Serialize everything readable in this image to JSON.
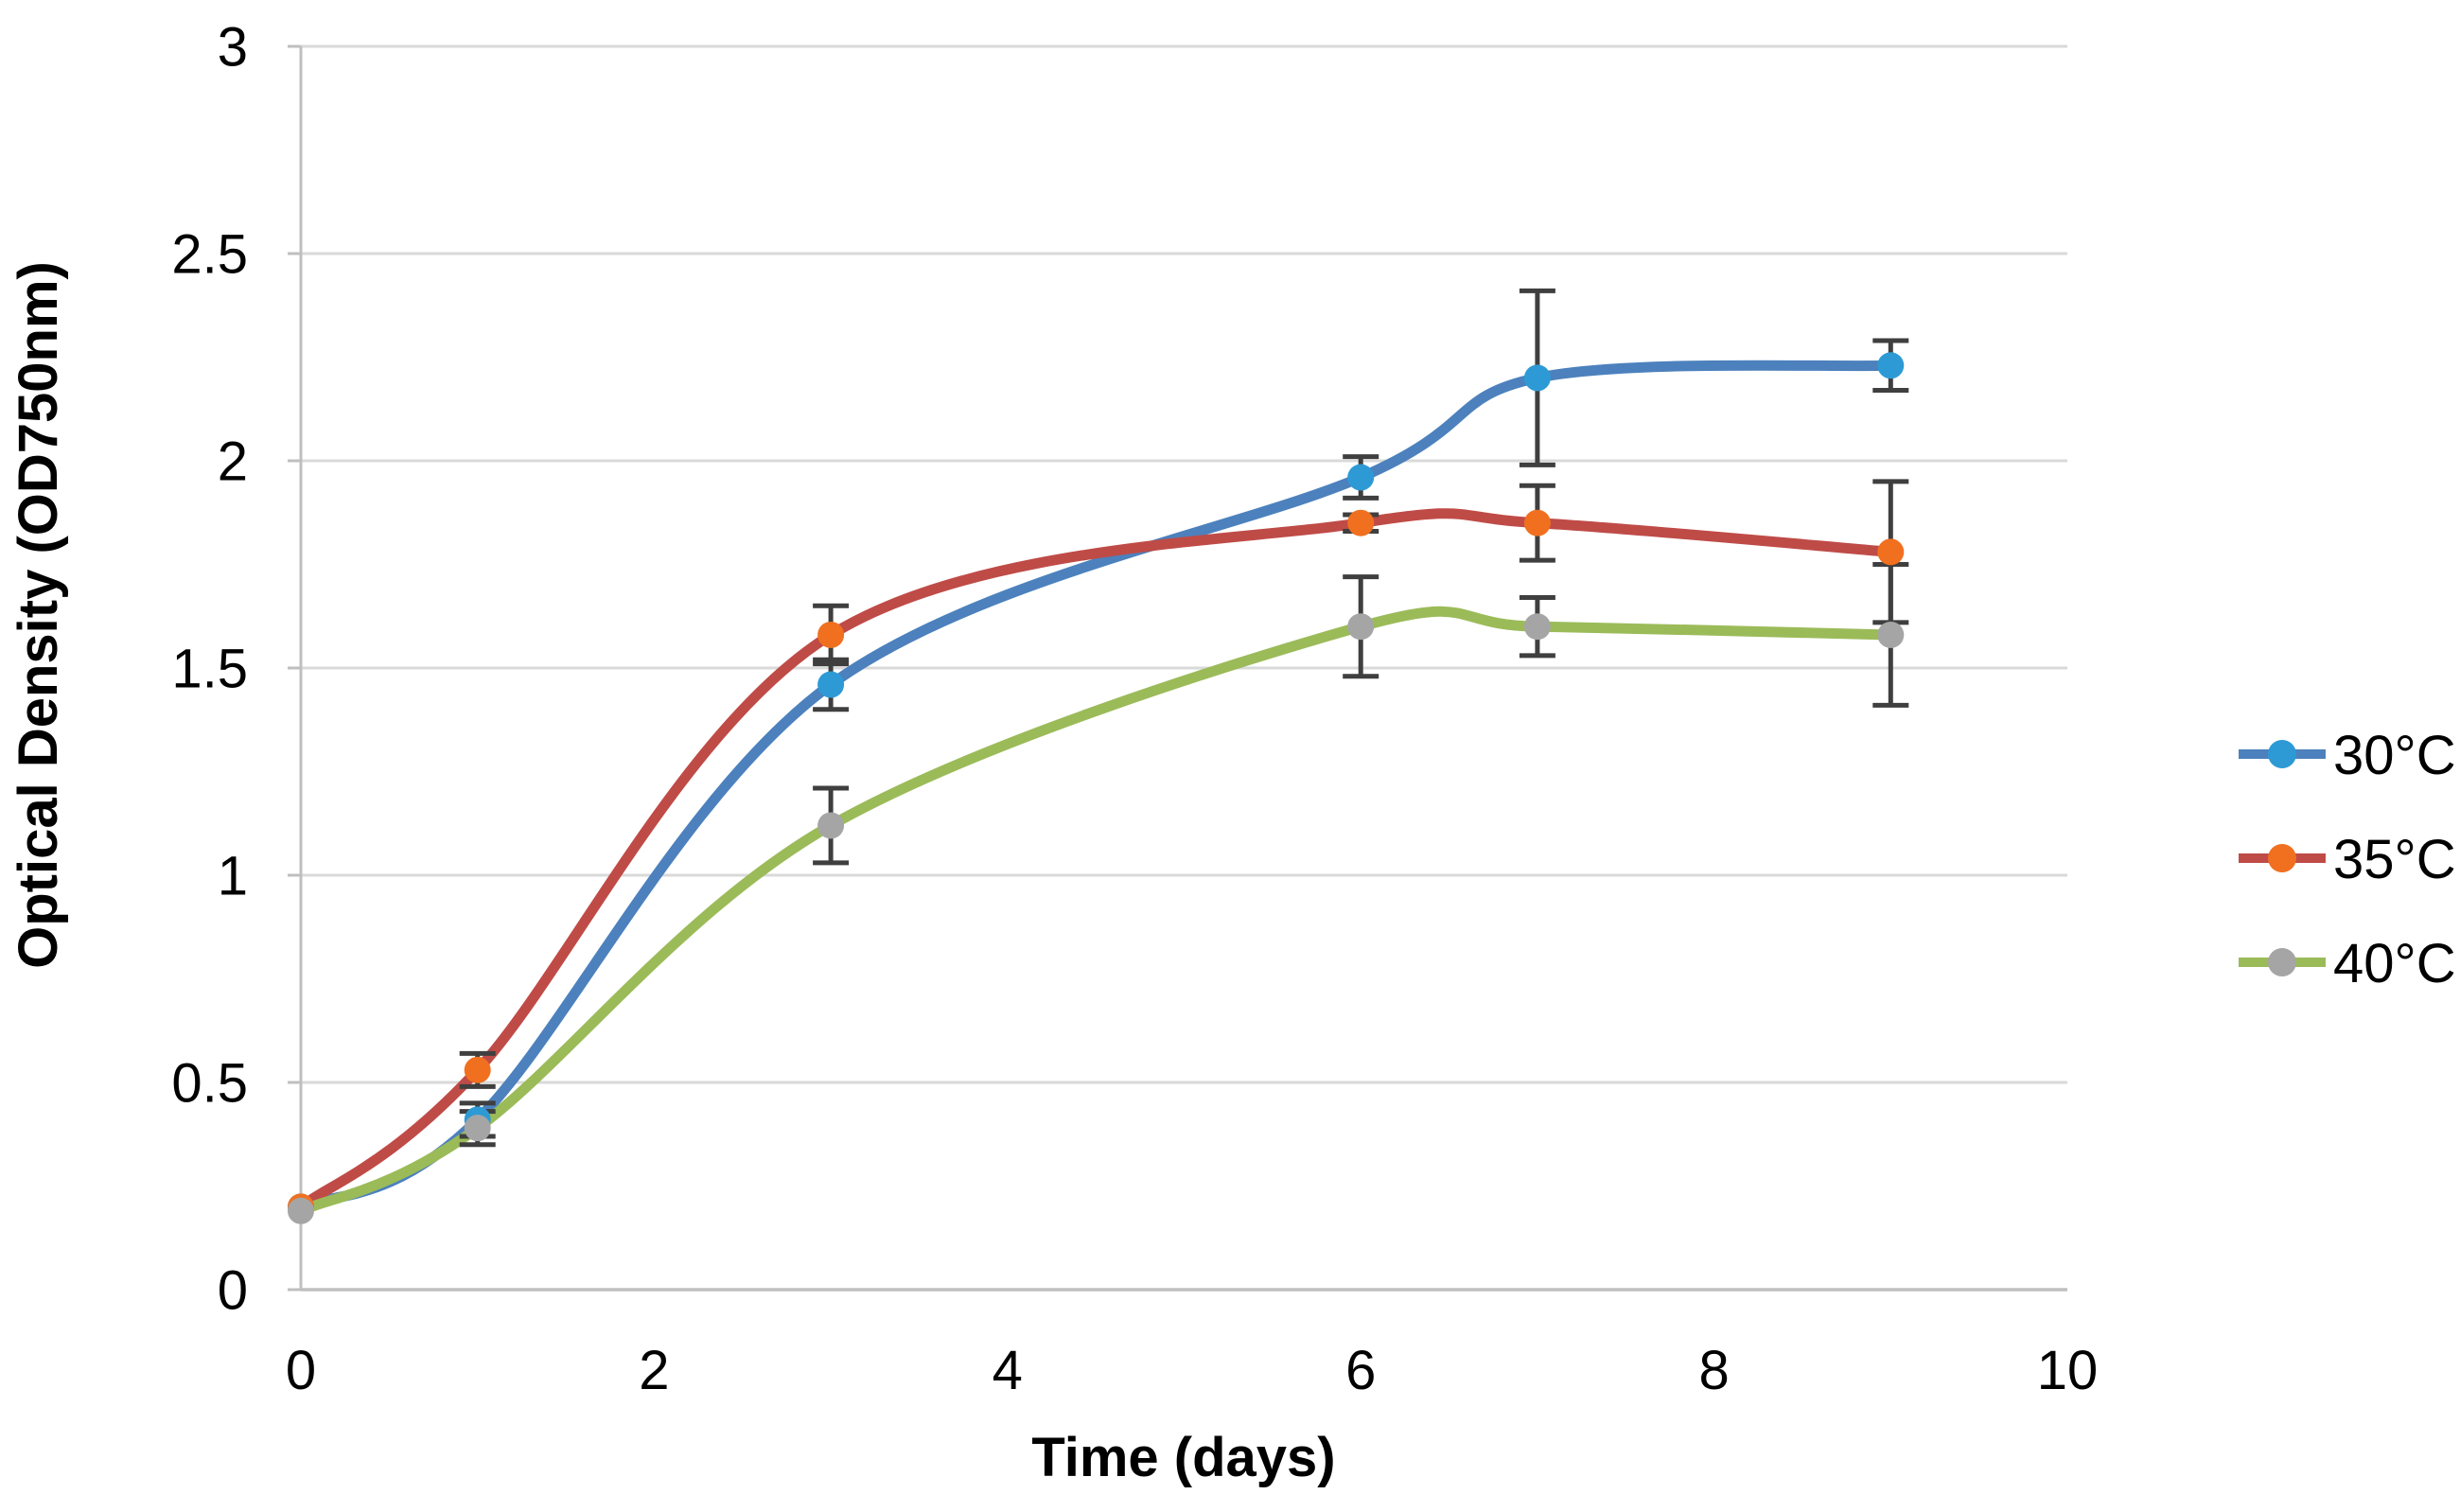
{
  "chart_data": {
    "type": "line",
    "title": "",
    "xlabel": "Time (days)",
    "ylabel": "Optical Density (OD750nm)",
    "x": [
      0,
      1,
      3,
      6,
      7,
      9
    ],
    "xlim": [
      0,
      10
    ],
    "ylim": [
      0,
      3
    ],
    "x_ticks": [
      "0",
      "2",
      "4",
      "6",
      "8",
      "10"
    ],
    "x_tick_values": [
      0,
      2,
      4,
      6,
      8,
      10
    ],
    "y_ticks": [
      "0",
      "0.5",
      "1",
      "1.5",
      "2",
      "2.5",
      "3"
    ],
    "y_tick_values": [
      0,
      0.5,
      1,
      1.5,
      2,
      2.5,
      3
    ],
    "grid": "horizontal gridlines every 0.5, no vertical gridlines",
    "legend_position": "right",
    "line_style": "smoothed lines with circular markers and vertical error bars",
    "series": [
      {
        "name": "30°C",
        "line_color": "#4C81BD",
        "marker_color": "#2E9AD5",
        "values": [
          0.2,
          0.41,
          1.46,
          1.96,
          2.2,
          2.23
        ],
        "errors": [
          0,
          0.04,
          0.06,
          0.05,
          0.21,
          0.06
        ]
      },
      {
        "name": "35°C",
        "line_color": "#BF4B47",
        "marker_color": "#F07020",
        "values": [
          0.2,
          0.53,
          1.58,
          1.85,
          1.85,
          1.78
        ],
        "errors": [
          0,
          0.04,
          0.07,
          0.02,
          0.09,
          0.17
        ]
      },
      {
        "name": "40°C",
        "line_color": "#9BBB59",
        "marker_color": "#A5A5A5",
        "values": [
          0.19,
          0.39,
          1.12,
          1.6,
          1.6,
          1.58
        ],
        "errors": [
          0,
          0.04,
          0.09,
          0.12,
          0.07,
          0.17
        ]
      }
    ],
    "colors": {
      "error_bar": "#3F3F3F",
      "gridline": "#D9D9D9",
      "axis_line": "#BFBFBF",
      "text": "#000000",
      "background": "#FFFFFF"
    }
  }
}
